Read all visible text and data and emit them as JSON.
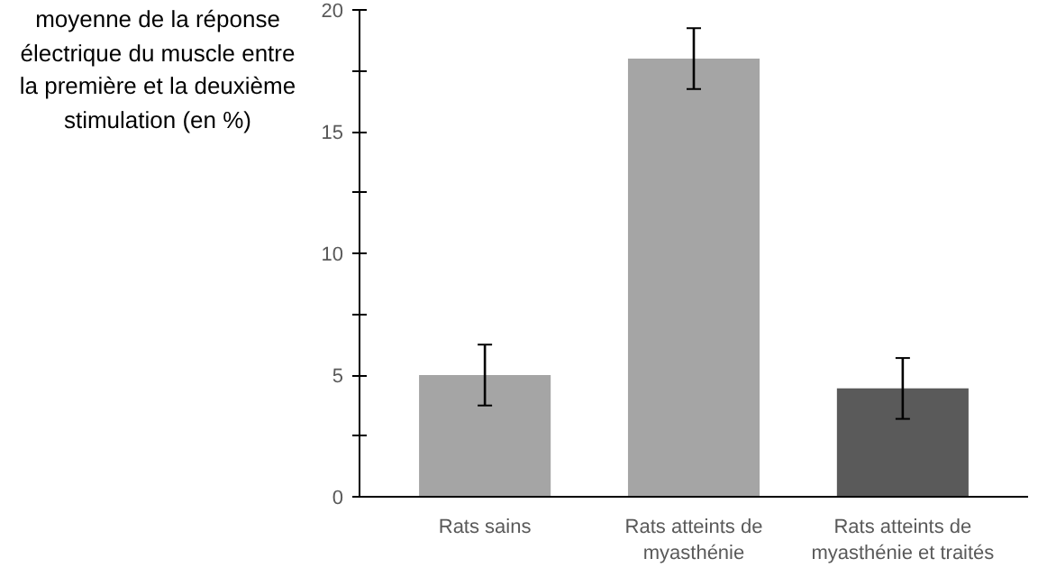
{
  "chart_data": {
    "type": "bar",
    "ylabel": "moyenne de la réponse électrique du muscle entre la première et la deuxième stimulation (en %)",
    "categories": [
      "Rats sains",
      "Rats atteints de myasthénie",
      "Rats atteints de myasthénie et traités"
    ],
    "values": [
      5,
      18,
      4.45
    ],
    "colors": [
      "#a5a5a5",
      "#a5a5a5",
      "#5a5a5a"
    ],
    "errors": [
      1.25,
      1.25,
      1.25
    ],
    "ylim": [
      0,
      20
    ],
    "yticks": [
      0,
      {
        "value": 2.5,
        "label": null
      },
      5,
      {
        "value": 7.5,
        "label": null
      },
      10,
      {
        "value": 12.5,
        "label": null
      },
      15,
      {
        "value": 17.5,
        "label": null
      },
      20
    ],
    "grid": false
  }
}
